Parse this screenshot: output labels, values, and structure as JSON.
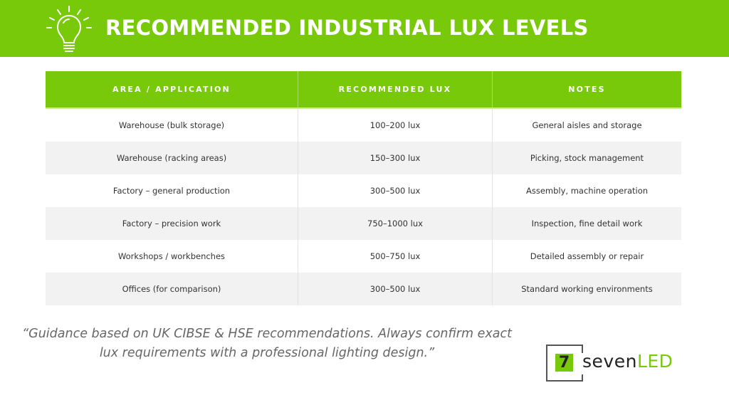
{
  "header": {
    "title": "RECOMMENDED INDUSTRIAL LUX LEVELS",
    "icon": "lightbulb-icon",
    "color": "#78c90a"
  },
  "table": {
    "columns": [
      "AREA / APPLICATION",
      "RECOMMENDED LUX",
      "NOTES"
    ],
    "rows": [
      [
        "Warehouse (bulk storage)",
        "100–200 lux",
        "General aisles and storage"
      ],
      [
        "Warehouse (racking areas)",
        "150–300 lux",
        "Picking, stock management"
      ],
      [
        "Factory – general production",
        "300–500 lux",
        "Assembly, machine operation"
      ],
      [
        "Factory – precision work",
        "750–1000 lux",
        "Inspection, fine detail work"
      ],
      [
        "Workshops / workbenches",
        "500–750 lux",
        "Detailed assembly or repair"
      ],
      [
        "Offices (for comparison)",
        "300–500 lux",
        "Standard working environments"
      ]
    ]
  },
  "quote": "“Guidance based on UK CIBSE & HSE recommendations. Always confirm exact lux requirements with a professional lighting design.”",
  "logo": {
    "mark": "7",
    "name_a": "seven",
    "name_b": "LED"
  }
}
